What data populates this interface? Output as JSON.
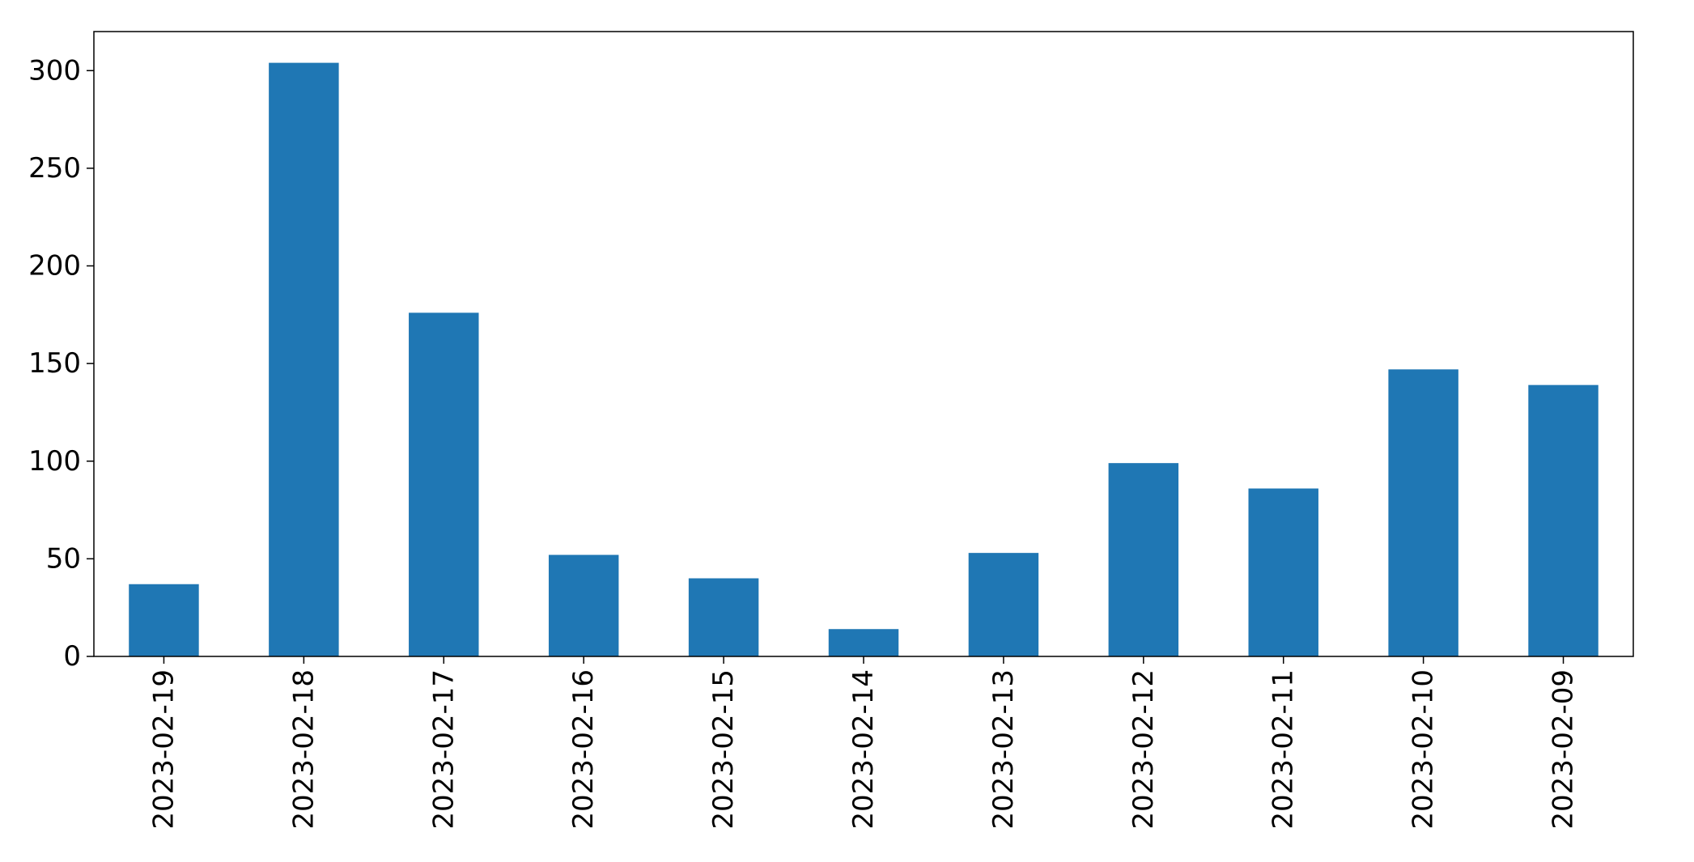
{
  "chart_data": {
    "type": "bar",
    "title": "",
    "xlabel": "",
    "ylabel": "",
    "categories": [
      "2023-02-19",
      "2023-02-18",
      "2023-02-17",
      "2023-02-16",
      "2023-02-15",
      "2023-02-14",
      "2023-02-13",
      "2023-02-12",
      "2023-02-11",
      "2023-02-10",
      "2023-02-09"
    ],
    "values": [
      37,
      304,
      176,
      52,
      40,
      14,
      53,
      99,
      86,
      147,
      139
    ],
    "ylim": [
      0,
      320
    ],
    "yticks": [
      0,
      50,
      100,
      150,
      200,
      250,
      300
    ],
    "bar_color": "#1f77b4",
    "grid": false,
    "legend": "none"
  }
}
